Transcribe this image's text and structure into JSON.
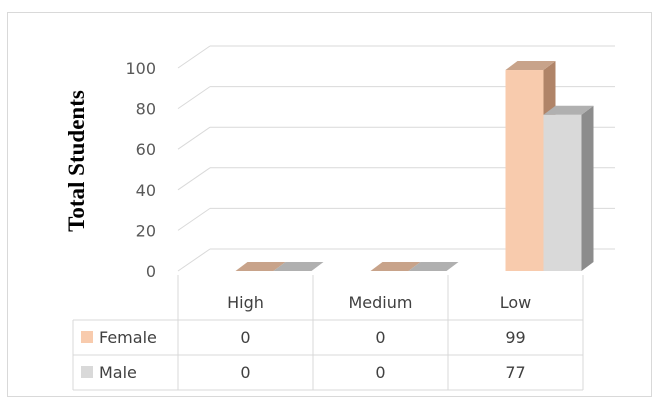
{
  "chart_data": {
    "type": "bar",
    "subtype": "3d-clustered-column-with-data-table",
    "ylabel": "Total Students",
    "ylim": [
      0,
      100
    ],
    "yticks": [
      0,
      20,
      40,
      60,
      80,
      100
    ],
    "categories": [
      "High",
      "Medium",
      "Low"
    ],
    "series": [
      {
        "name": "Female",
        "values": [
          0,
          0,
          99
        ],
        "color": "#f8cbad",
        "top_color": "#c8a38a",
        "side_color": "#b08468"
      },
      {
        "name": "Male",
        "values": [
          0,
          0,
          77
        ],
        "color": "#d9d9d9",
        "top_color": "#b0b0b0",
        "side_color": "#8c8c8c"
      }
    ],
    "grid": true,
    "legend": "data-table"
  }
}
